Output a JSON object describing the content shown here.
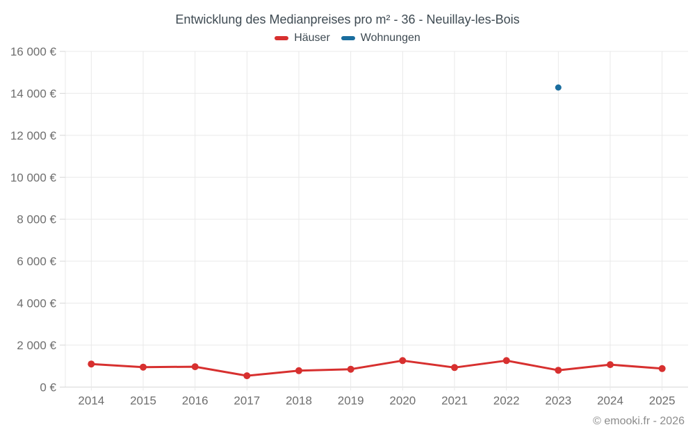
{
  "title": "Entwicklung des Medianpreises pro m² - 36 - Neuillay-les-Bois",
  "footer": {
    "copyright": "© emooki.fr - 2026"
  },
  "colors": {
    "haeuser": "#d7302f",
    "wohnungen": "#1a6d9e",
    "grid": "#e9e9e9",
    "axis_line": "#d6d6d6",
    "axis_label": "#6e6e6e",
    "title_text": "#3e4a52"
  },
  "chart_data": {
    "type": "line",
    "title": "Entwicklung des Medianpreises pro m² - 36 - Neuillay-les-Bois",
    "categories": [
      "2014",
      "2015",
      "2016",
      "2017",
      "2018",
      "2019",
      "2020",
      "2021",
      "2022",
      "2023",
      "2024",
      "2025"
    ],
    "series": [
      {
        "name": "Häuser",
        "color": "#d7302f",
        "values": [
          1100,
          950,
          970,
          540,
          780,
          850,
          1260,
          930,
          1260,
          800,
          1070,
          880
        ]
      },
      {
        "name": "Wohnungen",
        "color": "#1a6d9e",
        "values": [
          null,
          null,
          null,
          null,
          null,
          null,
          null,
          null,
          null,
          14280,
          null,
          null
        ]
      }
    ],
    "xlabel": "",
    "ylabel": "",
    "ylim": [
      0,
      16000
    ],
    "y_tick_step": 2000,
    "y_ticks": [
      {
        "value": 0,
        "label": "0 €"
      },
      {
        "value": 2000,
        "label": "2 000 €"
      },
      {
        "value": 4000,
        "label": "4 000 €"
      },
      {
        "value": 6000,
        "label": "6 000 €"
      },
      {
        "value": 8000,
        "label": "8 000 €"
      },
      {
        "value": 10000,
        "label": "10 000 €"
      },
      {
        "value": 12000,
        "label": "12 000 €"
      },
      {
        "value": 14000,
        "label": "14 000 €"
      },
      {
        "value": 16000,
        "label": "16 000 €"
      }
    ],
    "grid": true,
    "legend_position": "top"
  }
}
